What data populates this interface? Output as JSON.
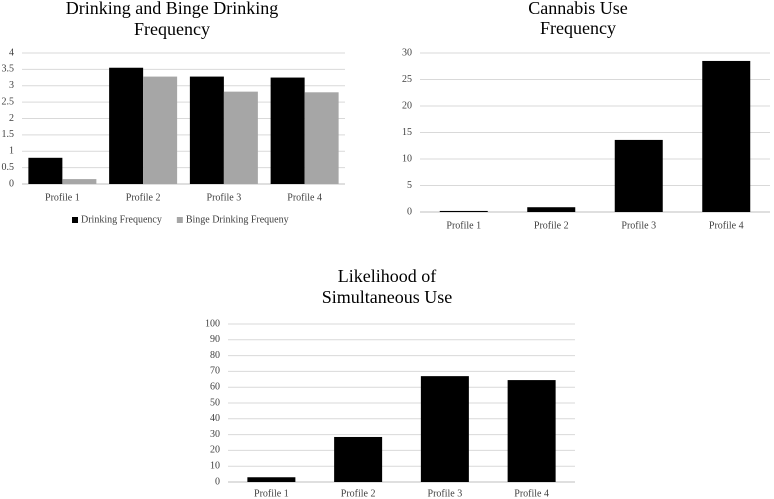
{
  "chart_data": [
    {
      "type": "bar",
      "title": [
        "Drinking and Binge Drinking",
        "Frequency"
      ],
      "categories": [
        "Profile 1",
        "Profile 2",
        "Profile 3",
        "Profile 4"
      ],
      "series": [
        {
          "name": "Drinking Frequency",
          "color": "#000000",
          "values": [
            0.8,
            3.55,
            3.28,
            3.25
          ]
        },
        {
          "name": "Binge Drinking Frequeny",
          "color": "#a6a6a6",
          "values": [
            0.15,
            3.28,
            2.82,
            2.8
          ]
        }
      ],
      "ylim": [
        0,
        4
      ],
      "yticks": [
        0,
        0.5,
        1,
        1.5,
        2,
        2.5,
        3,
        3.5,
        4
      ],
      "grid": true,
      "legend": "bottom"
    },
    {
      "type": "bar",
      "title": [
        "Cannabis Use",
        "Frequency"
      ],
      "categories": [
        "Profile 1",
        "Profile 2",
        "Profile 3",
        "Profile 4"
      ],
      "series": [
        {
          "color": "#000000",
          "values": [
            0.2,
            0.9,
            13.6,
            28.5
          ]
        }
      ],
      "ylim": [
        0,
        30
      ],
      "yticks": [
        0,
        5,
        10,
        15,
        20,
        25,
        30
      ],
      "grid": true
    },
    {
      "type": "bar",
      "title": [
        "Likelihood of",
        "Simultaneous Use"
      ],
      "categories": [
        "Profile 1",
        "Profile 2",
        "Profile 3",
        "Profile 4"
      ],
      "series": [
        {
          "color": "#000000",
          "values": [
            3,
            28.5,
            67,
            64.5
          ]
        }
      ],
      "ylim": [
        0,
        100
      ],
      "yticks": [
        0,
        10,
        20,
        30,
        40,
        50,
        60,
        70,
        80,
        90,
        100
      ],
      "grid": true
    }
  ]
}
